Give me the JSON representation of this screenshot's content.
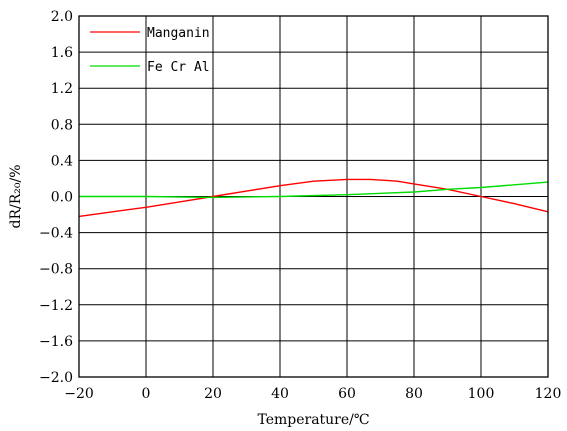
{
  "chart_data": {
    "type": "line",
    "xlabel": "Temperature/℃",
    "ylabel": "dR/R₂₀/%",
    "xlim": [
      -20,
      120
    ],
    "ylim": [
      -2.0,
      2.0
    ],
    "x_ticks": [
      -20,
      0,
      20,
      40,
      60,
      80,
      100,
      120
    ],
    "y_ticks": [
      2.0,
      1.6,
      1.2,
      0.8,
      0.4,
      0.0,
      -0.4,
      -0.8,
      -1.2,
      -1.6,
      -2.0
    ],
    "x_tick_labels": [
      "−20",
      "0",
      "20",
      "40",
      "60",
      "80",
      "100",
      "120"
    ],
    "y_tick_labels": [
      "2.0",
      "1.6",
      "1.2",
      "0.8",
      "0.4",
      "0.0",
      "−0.4",
      "−0.8",
      "−1.2",
      "−1.6",
      "−2.0"
    ],
    "grid": true,
    "legend_position": "top-left",
    "series": [
      {
        "name": "Manganin",
        "color": "#ff0000",
        "points": [
          [
            -20,
            -0.22
          ],
          [
            -10,
            -0.17
          ],
          [
            0,
            -0.12
          ],
          [
            10,
            -0.06
          ],
          [
            20,
            0.0
          ],
          [
            30,
            0.06
          ],
          [
            40,
            0.12
          ],
          [
            50,
            0.17
          ],
          [
            60,
            0.19
          ],
          [
            67,
            0.19
          ],
          [
            75,
            0.17
          ],
          [
            80,
            0.14
          ],
          [
            90,
            0.08
          ],
          [
            100,
            0.0
          ],
          [
            110,
            -0.08
          ],
          [
            120,
            -0.17
          ]
        ]
      },
      {
        "name": "Fe Cr Al",
        "color": "#00dd00",
        "points": [
          [
            -20,
            0.0
          ],
          [
            0,
            0.0
          ],
          [
            20,
            -0.01
          ],
          [
            40,
            0.0
          ],
          [
            60,
            0.02
          ],
          [
            80,
            0.05
          ],
          [
            90,
            0.08
          ],
          [
            100,
            0.1
          ],
          [
            110,
            0.13
          ],
          [
            120,
            0.16
          ]
        ]
      }
    ]
  }
}
